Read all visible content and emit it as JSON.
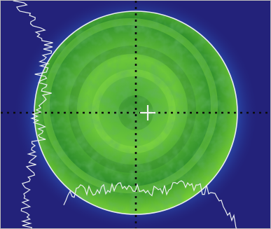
{
  "image": {
    "subject": "beam-profile-view",
    "colors": {
      "background": "#23227a",
      "halo": "#2f6bd6",
      "beam_core": "#79d136",
      "beam_dark": "#1f7e2a",
      "overlay_line": "#e9eef0",
      "crosshair": "#0b0b0b",
      "center_marker": "#f2f2f2"
    },
    "icons": [
      "crosshair-icon"
    ]
  }
}
